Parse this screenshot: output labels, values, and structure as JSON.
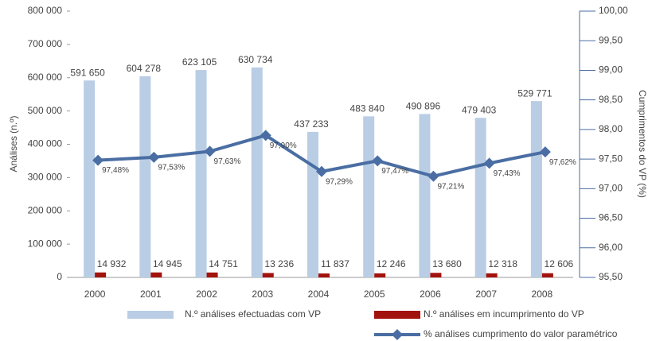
{
  "chart_data": {
    "type": "bar",
    "categories": [
      "2000",
      "2001",
      "2002",
      "2003",
      "2004",
      "2005",
      "2006",
      "2007",
      "2008"
    ],
    "ylabel": "Análises (n.º)",
    "y2label": "Cumprimentos do VP (%)",
    "ylim": [
      0,
      800000
    ],
    "yticks": [
      {
        "value": 0,
        "label": "0"
      },
      {
        "value": 100000,
        "label": "100 000"
      },
      {
        "value": 200000,
        "label": "200 000"
      },
      {
        "value": 300000,
        "label": "300 000"
      },
      {
        "value": 400000,
        "label": "400 000"
      },
      {
        "value": 500000,
        "label": "500 000"
      },
      {
        "value": 600000,
        "label": "600 000"
      },
      {
        "value": 700000,
        "label": "700 000"
      },
      {
        "value": 800000,
        "label": "800 000"
      }
    ],
    "y2lim": [
      95.5,
      100
    ],
    "y2ticks": [
      {
        "value": 95.5,
        "label": "95,50"
      },
      {
        "value": 96,
        "label": "96,00"
      },
      {
        "value": 96.5,
        "label": "96,50"
      },
      {
        "value": 97,
        "label": "97,00"
      },
      {
        "value": 97.5,
        "label": "97,50"
      },
      {
        "value": 98,
        "label": "98,00"
      },
      {
        "value": 98.5,
        "label": "98,50"
      },
      {
        "value": 99,
        "label": "99,00"
      },
      {
        "value": 99.5,
        "label": "99,50"
      },
      {
        "value": 100,
        "label": "100,00"
      }
    ],
    "series": [
      {
        "name": "N.º análises efectuadas com VP",
        "type": "bar",
        "color": "#b9cde5",
        "values": [
          591650,
          604278,
          623105,
          630734,
          437233,
          483840,
          490896,
          479403,
          529771
        ],
        "value_labels": [
          "591 650",
          "604 278",
          "623 105",
          "630 734",
          "437 233",
          "483 840",
          "490 896",
          "479 403",
          "529 771"
        ]
      },
      {
        "name": "N.º análises em incumprimento do VP",
        "type": "bar",
        "color": "#a3130d",
        "values": [
          14932,
          14945,
          14751,
          13236,
          11837,
          12246,
          13680,
          12318,
          12606
        ],
        "value_labels": [
          "14 932",
          "14 945",
          "14 751",
          "13 236",
          "11 837",
          "12 246",
          "13 680",
          "12 318",
          "12 606"
        ]
      },
      {
        "name": "% análises cumprimento do valor paramétrico",
        "type": "line",
        "axis": "y2",
        "color": "#4a6ea3",
        "values": [
          97.48,
          97.53,
          97.63,
          97.9,
          97.29,
          97.47,
          97.21,
          97.43,
          97.62
        ],
        "value_labels": [
          "97,48%",
          "97,53%",
          "97,63%",
          "97,90%",
          "97,29%",
          "97,47%",
          "97,21%",
          "97,43%",
          "97,62%"
        ]
      }
    ]
  }
}
